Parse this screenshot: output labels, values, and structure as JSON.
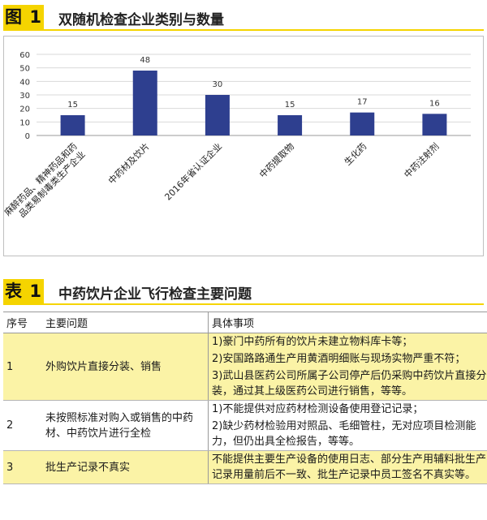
{
  "fig_header": {
    "badge": "图 1",
    "title": "双随机检查企业类别与数量"
  },
  "chart_data": {
    "type": "bar",
    "categories": [
      "麻醉药品、精神药品和药品类易制毒类生产企业",
      "中药材及饮片",
      "2016年省认证企业",
      "中药提取物",
      "生化药",
      "中药注射剂"
    ],
    "values": [
      15,
      48,
      30,
      15,
      17,
      16
    ],
    "data_labels": [
      "15",
      "48",
      "30",
      "15",
      "17",
      "16"
    ],
    "yticks": [
      "0",
      "10",
      "20",
      "30",
      "40",
      "50",
      "60"
    ],
    "ylim": [
      0,
      60
    ],
    "grid": true,
    "legend": "none",
    "bar_color": "#2e3f8f"
  },
  "table_header": {
    "badge": "表 1",
    "title": "中药饮片企业飞行检查主要问题"
  },
  "table": {
    "columns": [
      "序号",
      "主要问题",
      "具体事项"
    ],
    "rows": [
      {
        "no": "1",
        "issue": "外购饮片直接分装、销售",
        "details": [
          "1)豪门中药所有的饮片未建立物料库卡等；",
          "2)安国路路通生产用黄酒明细账与现场实物严重不符；",
          "3)武山县医药公司所属子公司停产后仍采购中药饮片直接分装，通过其上级医药公司进行销售，等等。"
        ]
      },
      {
        "no": "2",
        "issue": "未按照标准对购入或销售的中药材、中药饮片进行全检",
        "details": [
          "1)不能提供对应药材检测设备使用登记记录；",
          "2)缺少药材检验用对照品、毛细管柱，无对应项目检测能力，但仍出具全检报告，等等。"
        ]
      },
      {
        "no": "3",
        "issue": "批生产记录不真实",
        "details": [
          "不能提供主要生产设备的使用日志、部分生产用辅料批生产记录用量前后不一致、批生产记录中员工签名不真实等。"
        ]
      }
    ]
  }
}
